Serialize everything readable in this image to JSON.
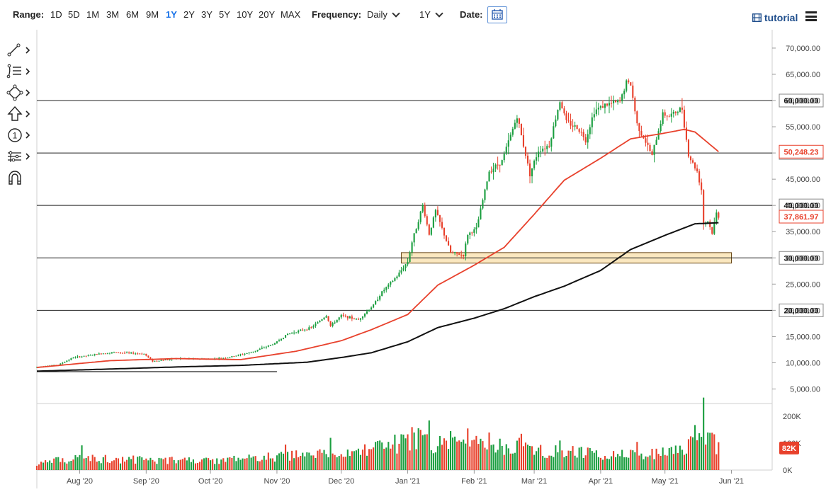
{
  "toolbar": {
    "range_label": "Range:",
    "ranges": [
      "1D",
      "5D",
      "1M",
      "3M",
      "6M",
      "9M",
      "1Y",
      "2Y",
      "3Y",
      "5Y",
      "10Y",
      "20Y",
      "MAX"
    ],
    "active_range": "1Y",
    "frequency_label": "Frequency:",
    "frequency_value": "Daily",
    "period_value": "1Y",
    "date_label": "Date:",
    "tutorial_label": "tutorial"
  },
  "drawing_tools": [
    "line-tool-icon",
    "fib-tool-icon",
    "shape-tool-icon",
    "arrow-tool-icon",
    "annotation-number-icon",
    "pattern-tool-icon",
    "magnet-icon"
  ],
  "chart_data": {
    "type": "candlestick",
    "price_axis": {
      "ticks": [
        5000,
        10000,
        15000,
        20000,
        25000,
        30000,
        35000,
        40000,
        45000,
        50000,
        55000,
        60000,
        65000,
        70000
      ],
      "tick_labels": [
        "5,000.00",
        "10,000.00",
        "15,000.00",
        "20,000.00",
        "25,000.00",
        "30,000.00",
        "35,000.00",
        "40,000.00",
        "45,000.00",
        "50,000.00",
        "55,000.00",
        "60,000.00",
        "65,000.00",
        "70,000.00"
      ],
      "range": [
        2500,
        73500
      ]
    },
    "volume_axis": {
      "ticks": [
        0,
        100000,
        200000
      ],
      "tick_labels": [
        "0K",
        "100K",
        "200K"
      ],
      "range": [
        0,
        240000
      ]
    },
    "x_axis": {
      "start": "2020-07-12",
      "end": "2021-06-20",
      "ticks": [
        {
          "date": "2020-08-01",
          "label": "Aug '20"
        },
        {
          "date": "2020-09-01",
          "label": "Sep '20"
        },
        {
          "date": "2020-10-01",
          "label": "Oct '20"
        },
        {
          "date": "2020-11-01",
          "label": "Nov '20"
        },
        {
          "date": "2020-12-01",
          "label": "Dec '20"
        },
        {
          "date": "2021-01-01",
          "label": "Jan '21"
        },
        {
          "date": "2021-02-01",
          "label": "Feb '21"
        },
        {
          "date": "2021-03-01",
          "label": "Mar '21"
        },
        {
          "date": "2021-04-01",
          "label": "Apr '21"
        },
        {
          "date": "2021-05-01",
          "label": "May '21"
        },
        {
          "date": "2021-06-01",
          "label": "Jun '21"
        }
      ]
    },
    "price_keypoints": [
      [
        "2020-07-12",
        9200
      ],
      [
        "2020-07-22",
        9600
      ],
      [
        "2020-07-29",
        11000
      ],
      [
        "2020-08-02",
        11200
      ],
      [
        "2020-08-10",
        11700
      ],
      [
        "2020-08-17",
        12000
      ],
      [
        "2020-08-31",
        11700
      ],
      [
        "2020-09-04",
        10300
      ],
      [
        "2020-09-15",
        10800
      ],
      [
        "2020-09-30",
        10700
      ],
      [
        "2020-10-09",
        11000
      ],
      [
        "2020-10-20",
        12000
      ],
      [
        "2020-10-31",
        13700
      ],
      [
        "2020-11-06",
        15500
      ],
      [
        "2020-11-17",
        16700
      ],
      [
        "2020-11-24",
        19000
      ],
      [
        "2020-11-26",
        17000
      ],
      [
        "2020-12-01",
        19000
      ],
      [
        "2020-12-09",
        18200
      ],
      [
        "2020-12-16",
        21000
      ],
      [
        "2020-12-20",
        23500
      ],
      [
        "2020-12-27",
        26500
      ],
      [
        "2021-01-01",
        29300
      ],
      [
        "2021-01-03",
        33000
      ],
      [
        "2021-01-08",
        40000
      ],
      [
        "2021-01-11",
        34500
      ],
      [
        "2021-01-14",
        39000
      ],
      [
        "2021-01-21",
        31000
      ],
      [
        "2021-01-27",
        30500
      ],
      [
        "2021-01-29",
        34500
      ],
      [
        "2021-02-02",
        35500
      ],
      [
        "2021-02-08",
        46500
      ],
      [
        "2021-02-14",
        48500
      ],
      [
        "2021-02-21",
        57000
      ],
      [
        "2021-02-27",
        46000
      ],
      [
        "2021-03-03",
        50500
      ],
      [
        "2021-03-08",
        51500
      ],
      [
        "2021-03-13",
        60000
      ],
      [
        "2021-03-16",
        56000
      ],
      [
        "2021-03-22",
        54500
      ],
      [
        "2021-03-25",
        52500
      ],
      [
        "2021-03-29",
        58000
      ],
      [
        "2021-04-02",
        59000
      ],
      [
        "2021-04-10",
        59800
      ],
      [
        "2021-04-13",
        63500
      ],
      [
        "2021-04-15",
        63000
      ],
      [
        "2021-04-18",
        55500
      ],
      [
        "2021-04-25",
        49500
      ],
      [
        "2021-04-30",
        57500
      ],
      [
        "2021-05-03",
        57000
      ],
      [
        "2021-05-09",
        58500
      ],
      [
        "2021-05-12",
        49500
      ],
      [
        "2021-05-16",
        46500
      ],
      [
        "2021-05-18",
        43000
      ],
      [
        "2021-05-19",
        36500
      ],
      [
        "2021-05-21",
        37000
      ],
      [
        "2021-05-23",
        34700
      ],
      [
        "2021-05-25",
        38500
      ],
      [
        "2021-05-26",
        37862
      ]
    ],
    "ma_fast_keypoints": [
      [
        "2020-07-12",
        9100
      ],
      [
        "2020-08-15",
        10400
      ],
      [
        "2020-09-15",
        10800
      ],
      [
        "2020-10-15",
        10600
      ],
      [
        "2020-11-10",
        12200
      ],
      [
        "2020-12-01",
        14200
      ],
      [
        "2020-12-15",
        16300
      ],
      [
        "2021-01-01",
        19200
      ],
      [
        "2021-01-15",
        24800
      ],
      [
        "2021-02-01",
        28600
      ],
      [
        "2021-02-15",
        32000
      ],
      [
        "2021-03-01",
        38300
      ],
      [
        "2021-03-15",
        44800
      ],
      [
        "2021-04-01",
        49000
      ],
      [
        "2021-04-15",
        52700
      ],
      [
        "2021-05-01",
        53800
      ],
      [
        "2021-05-10",
        54500
      ],
      [
        "2021-05-15",
        54000
      ],
      [
        "2021-05-26",
        50248
      ]
    ],
    "ma_slow_keypoints": [
      [
        "2020-07-12",
        8400
      ],
      [
        "2020-08-15",
        8800
      ],
      [
        "2020-09-15",
        9200
      ],
      [
        "2020-10-15",
        9500
      ],
      [
        "2020-11-15",
        10100
      ],
      [
        "2020-12-01",
        11000
      ],
      [
        "2020-12-15",
        11900
      ],
      [
        "2021-01-01",
        14000
      ],
      [
        "2021-01-15",
        16700
      ],
      [
        "2021-02-01",
        18500
      ],
      [
        "2021-02-15",
        20300
      ],
      [
        "2021-03-01",
        22600
      ],
      [
        "2021-03-15",
        24600
      ],
      [
        "2021-04-01",
        27600
      ],
      [
        "2021-04-15",
        31600
      ],
      [
        "2021-05-01",
        34300
      ],
      [
        "2021-05-15",
        36500
      ],
      [
        "2021-05-26",
        36700
      ]
    ],
    "volume_keypoints": [
      [
        "2020-07-12",
        25000
      ],
      [
        "2020-08-01",
        45000
      ],
      [
        "2020-09-01",
        38000
      ],
      [
        "2020-10-01",
        34000
      ],
      [
        "2020-11-01",
        50000
      ],
      [
        "2020-12-01",
        60000
      ],
      [
        "2020-12-20",
        85000
      ],
      [
        "2021-01-05",
        115000
      ],
      [
        "2021-01-20",
        90000
      ],
      [
        "2021-02-10",
        95000
      ],
      [
        "2021-03-01",
        75000
      ],
      [
        "2021-04-01",
        60000
      ],
      [
        "2021-04-20",
        55000
      ],
      [
        "2021-05-10",
        70000
      ],
      [
        "2021-05-19",
        170000
      ],
      [
        "2021-05-26",
        82000
      ]
    ],
    "volume_spikes": [
      [
        "2020-08-02",
        92000
      ],
      [
        "2020-11-05",
        95000
      ],
      [
        "2020-11-26",
        120000
      ],
      [
        "2020-12-17",
        105000
      ],
      [
        "2021-01-03",
        160000
      ],
      [
        "2021-01-04",
        140000
      ],
      [
        "2021-01-08",
        130000
      ],
      [
        "2021-01-11",
        185000
      ],
      [
        "2021-01-21",
        145000
      ],
      [
        "2021-01-29",
        155000
      ],
      [
        "2021-02-08",
        140000
      ],
      [
        "2021-02-22",
        120000
      ],
      [
        "2021-02-23",
        135000
      ],
      [
        "2021-03-13",
        110000
      ],
      [
        "2021-04-18",
        105000
      ],
      [
        "2021-05-12",
        115000
      ],
      [
        "2021-05-19",
        270000
      ],
      [
        "2021-05-21",
        140000
      ]
    ],
    "support_resistance": [
      {
        "value": 20000,
        "label": "20,000.00",
        "ticks_left": "full"
      },
      {
        "value": 30000,
        "label": "30,000.00",
        "ticks_left": "full"
      },
      {
        "value": 40000,
        "label": "40,000.00",
        "ticks_left": "full"
      },
      {
        "value": 50000,
        "label": "50,000.00",
        "ticks_left": "full"
      },
      {
        "value": 60000,
        "label": "60,000.00",
        "ticks_left": "full"
      }
    ],
    "bottom_trendline": {
      "from": [
        "2020-07-12",
        8300
      ],
      "to": [
        "2020-11-01",
        8300
      ]
    },
    "support_zone": {
      "from": "2020-12-29",
      "to": "2021-06-01",
      "low": 29000,
      "high": 31000
    },
    "price_badges": [
      {
        "value": 50248.23,
        "label": "50,248.23",
        "color": "#e8412c"
      },
      {
        "value": 37861.97,
        "label": "37,861.97",
        "color": "#e8412c"
      }
    ],
    "volume_badge": {
      "value": 82000,
      "label": "82K",
      "color": "#e8412c"
    },
    "colors": {
      "up": "#1a9e3f",
      "down": "#e8412c",
      "ma_fast": "#e8412c",
      "ma_slow": "#111111",
      "zone_fill": "#fbe8c0",
      "zone_stroke": "#6b4a1a",
      "grid": "#e6e6e6",
      "line": "#222222"
    }
  }
}
